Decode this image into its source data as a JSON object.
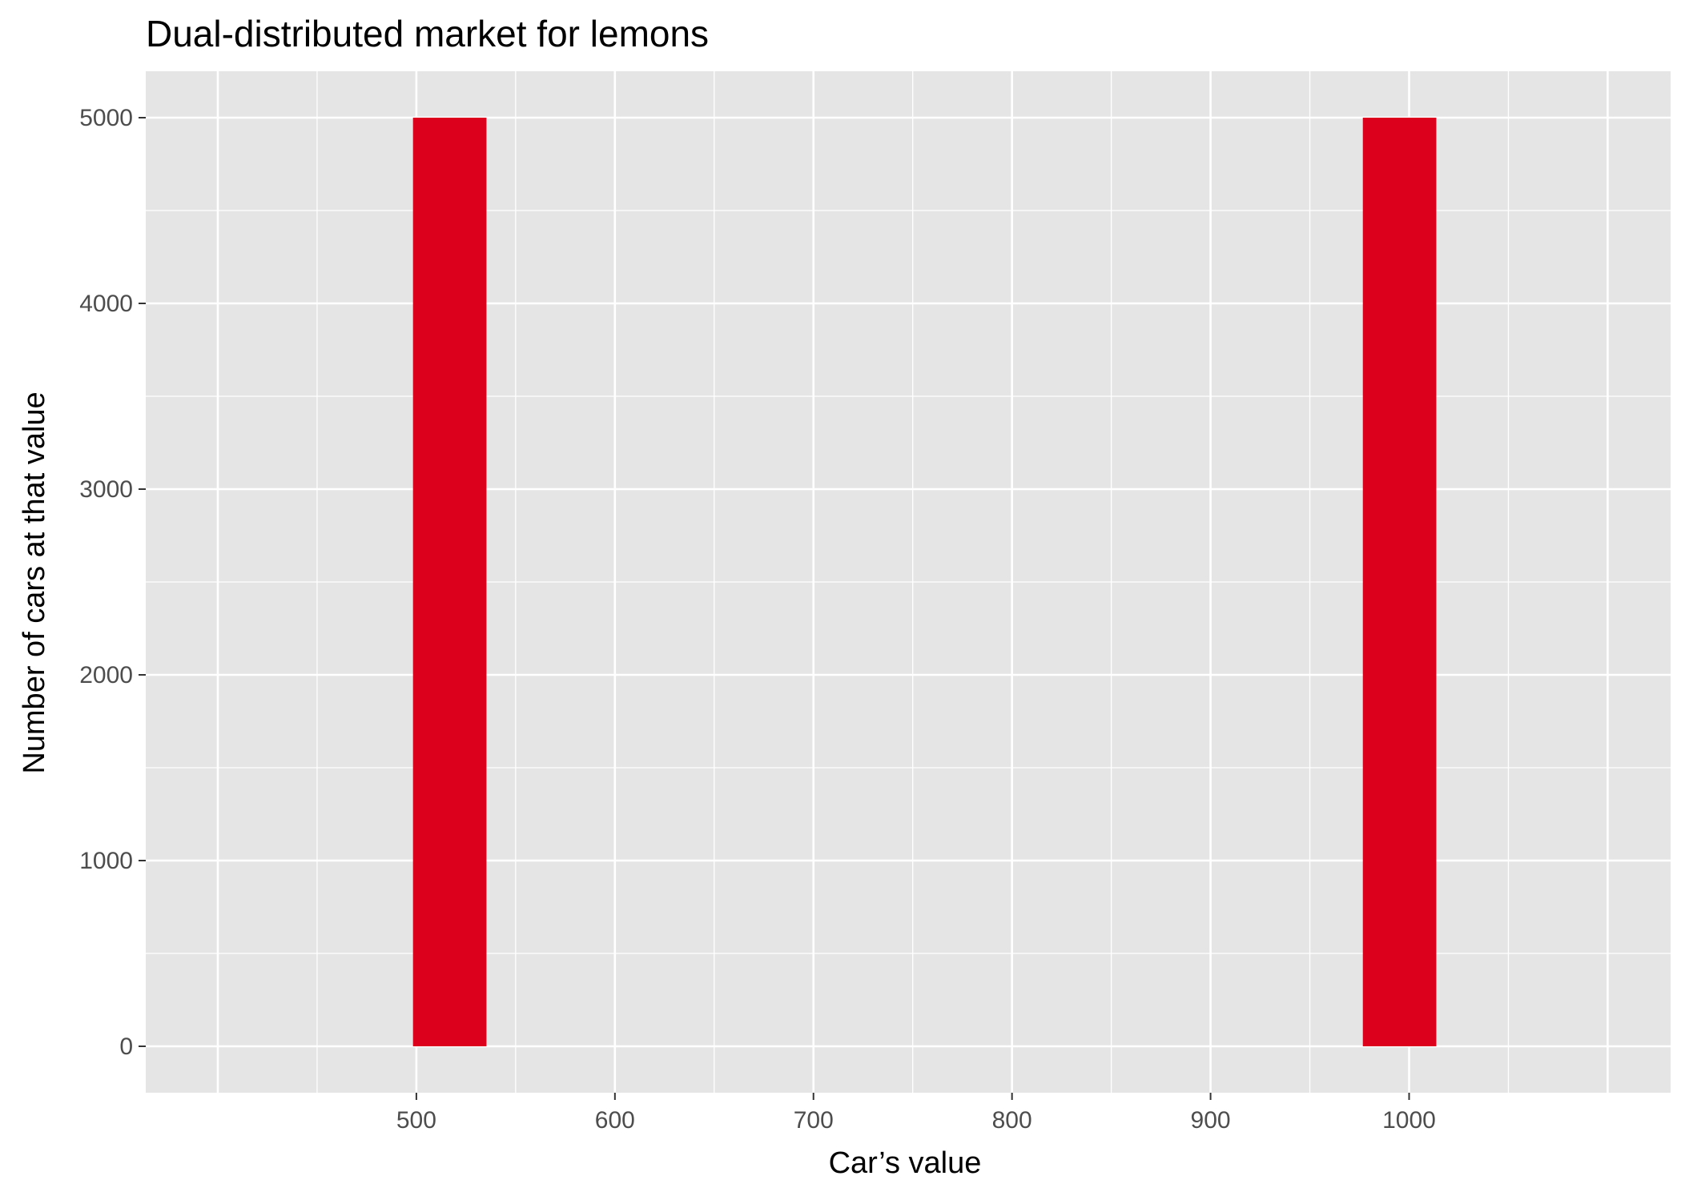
{
  "chart_data": {
    "type": "bar",
    "title": "Dual-distributed market for lemons",
    "xlabel": "Car’s value",
    "ylabel": "Number of cars at that value",
    "x_ticks": [
      500,
      600,
      700,
      800,
      900,
      1000
    ],
    "y_ticks": [
      0,
      1000,
      2000,
      3000,
      4000,
      5000
    ],
    "xlim": [
      363.7,
      1131.7
    ],
    "ylim": [
      -250,
      5250
    ],
    "grid": true,
    "series": [
      {
        "bars": [
          {
            "x_start": 498.3,
            "x_end": 535.3,
            "value": 5000
          },
          {
            "x_start": 976.7,
            "x_end": 1013.7,
            "value": 5000
          }
        ]
      }
    ],
    "colors": {
      "bar": "#dc001c",
      "panel_background": "#e5e5e5",
      "grid": "#ffffff",
      "tick_label": "#4d4d4d"
    }
  }
}
